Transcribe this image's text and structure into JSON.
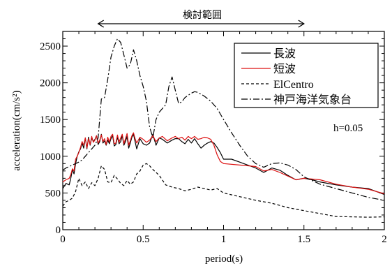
{
  "chart_data": {
    "type": "line",
    "title": "",
    "xlabel": "period(s)",
    "ylabel": "acceleration(cm/s²)",
    "xlim": [
      0,
      2
    ],
    "ylim": [
      0,
      2700
    ],
    "xticks": [
      0,
      0.5,
      1,
      1.5,
      2
    ],
    "yticks": [
      0,
      500,
      1000,
      1500,
      2000,
      2500
    ],
    "xtick_labels": [
      "0",
      "0.5",
      "1",
      "1.5",
      "2"
    ],
    "ytick_labels": [
      "0",
      "500",
      "1000",
      "1500",
      "2000",
      "2500"
    ],
    "grid": false,
    "legend_position": "top-right",
    "annotations": {
      "range_label": "検討範囲",
      "range": [
        0.22,
        1.5
      ],
      "damping": "h=0.05"
    },
    "series": [
      {
        "name": "長波",
        "color": "#000000",
        "style": "solid",
        "points": [
          [
            0,
            560
          ],
          [
            0.02,
            630
          ],
          [
            0.04,
            610
          ],
          [
            0.05,
            700
          ],
          [
            0.06,
            820
          ],
          [
            0.07,
            760
          ],
          [
            0.08,
            900
          ],
          [
            0.09,
            1000
          ],
          [
            0.1,
            1060
          ],
          [
            0.11,
            1100
          ],
          [
            0.12,
            1180
          ],
          [
            0.13,
            1110
          ],
          [
            0.14,
            1250
          ],
          [
            0.15,
            1100
          ],
          [
            0.16,
            1260
          ],
          [
            0.17,
            1150
          ],
          [
            0.18,
            1250
          ],
          [
            0.19,
            1200
          ],
          [
            0.2,
            1230
          ],
          [
            0.21,
            1280
          ],
          [
            0.22,
            1160
          ],
          [
            0.23,
            1200
          ],
          [
            0.24,
            1300
          ],
          [
            0.25,
            1180
          ],
          [
            0.26,
            1210
          ],
          [
            0.27,
            1150
          ],
          [
            0.28,
            1220
          ],
          [
            0.29,
            1170
          ],
          [
            0.3,
            1240
          ],
          [
            0.31,
            1280
          ],
          [
            0.32,
            1140
          ],
          [
            0.33,
            1160
          ],
          [
            0.34,
            1260
          ],
          [
            0.35,
            1170
          ],
          [
            0.36,
            1200
          ],
          [
            0.37,
            1280
          ],
          [
            0.38,
            1150
          ],
          [
            0.39,
            1200
          ],
          [
            0.4,
            1270
          ],
          [
            0.41,
            1110
          ],
          [
            0.42,
            1180
          ],
          [
            0.43,
            1260
          ],
          [
            0.44,
            1300
          ],
          [
            0.45,
            1200
          ],
          [
            0.46,
            1100
          ],
          [
            0.48,
            1240
          ],
          [
            0.5,
            1170
          ],
          [
            0.52,
            1150
          ],
          [
            0.54,
            1180
          ],
          [
            0.56,
            1300
          ],
          [
            0.58,
            1150
          ],
          [
            0.6,
            1250
          ],
          [
            0.62,
            1230
          ],
          [
            0.65,
            1180
          ],
          [
            0.68,
            1220
          ],
          [
            0.7,
            1240
          ],
          [
            0.72,
            1240
          ],
          [
            0.74,
            1200
          ],
          [
            0.76,
            1170
          ],
          [
            0.78,
            1230
          ],
          [
            0.8,
            1180
          ],
          [
            0.82,
            1240
          ],
          [
            0.84,
            1170
          ],
          [
            0.86,
            1110
          ],
          [
            0.88,
            1150
          ],
          [
            0.9,
            1180
          ],
          [
            0.92,
            1200
          ],
          [
            0.94,
            1180
          ],
          [
            0.96,
            1120
          ],
          [
            0.98,
            1050
          ],
          [
            1.0,
            960
          ],
          [
            1.05,
            960
          ],
          [
            1.1,
            920
          ],
          [
            1.15,
            880
          ],
          [
            1.2,
            840
          ],
          [
            1.25,
            780
          ],
          [
            1.3,
            840
          ],
          [
            1.35,
            810
          ],
          [
            1.4,
            740
          ],
          [
            1.45,
            680
          ],
          [
            1.5,
            700
          ],
          [
            1.55,
            680
          ],
          [
            1.6,
            650
          ],
          [
            1.7,
            610
          ],
          [
            1.8,
            580
          ],
          [
            1.9,
            560
          ],
          [
            2.0,
            480
          ]
        ]
      },
      {
        "name": "短波",
        "color": "#dd1111",
        "style": "solid",
        "points": [
          [
            0,
            650
          ],
          [
            0.02,
            680
          ],
          [
            0.04,
            700
          ],
          [
            0.05,
            750
          ],
          [
            0.06,
            830
          ],
          [
            0.07,
            800
          ],
          [
            0.08,
            960
          ],
          [
            0.09,
            1000
          ],
          [
            0.1,
            1050
          ],
          [
            0.11,
            1120
          ],
          [
            0.12,
            1200
          ],
          [
            0.13,
            1150
          ],
          [
            0.14,
            1250
          ],
          [
            0.15,
            1110
          ],
          [
            0.16,
            1240
          ],
          [
            0.17,
            1160
          ],
          [
            0.18,
            1270
          ],
          [
            0.19,
            1190
          ],
          [
            0.2,
            1220
          ],
          [
            0.21,
            1280
          ],
          [
            0.22,
            1180
          ],
          [
            0.23,
            1220
          ],
          [
            0.24,
            1290
          ],
          [
            0.25,
            1200
          ],
          [
            0.26,
            1240
          ],
          [
            0.27,
            1160
          ],
          [
            0.28,
            1260
          ],
          [
            0.29,
            1190
          ],
          [
            0.3,
            1270
          ],
          [
            0.31,
            1300
          ],
          [
            0.32,
            1170
          ],
          [
            0.33,
            1180
          ],
          [
            0.34,
            1290
          ],
          [
            0.35,
            1190
          ],
          [
            0.36,
            1250
          ],
          [
            0.37,
            1300
          ],
          [
            0.38,
            1170
          ],
          [
            0.39,
            1240
          ],
          [
            0.4,
            1310
          ],
          [
            0.41,
            1150
          ],
          [
            0.42,
            1210
          ],
          [
            0.43,
            1280
          ],
          [
            0.44,
            1320
          ],
          [
            0.45,
            1240
          ],
          [
            0.46,
            1180
          ],
          [
            0.48,
            1260
          ],
          [
            0.5,
            1230
          ],
          [
            0.52,
            1190
          ],
          [
            0.54,
            1220
          ],
          [
            0.56,
            1280
          ],
          [
            0.58,
            1200
          ],
          [
            0.6,
            1250
          ],
          [
            0.62,
            1270
          ],
          [
            0.65,
            1210
          ],
          [
            0.68,
            1250
          ],
          [
            0.7,
            1270
          ],
          [
            0.72,
            1240
          ],
          [
            0.74,
            1260
          ],
          [
            0.76,
            1220
          ],
          [
            0.78,
            1270
          ],
          [
            0.8,
            1240
          ],
          [
            0.82,
            1270
          ],
          [
            0.84,
            1230
          ],
          [
            0.86,
            1240
          ],
          [
            0.88,
            1260
          ],
          [
            0.9,
            1250
          ],
          [
            0.92,
            1230
          ],
          [
            0.94,
            1150
          ],
          [
            0.96,
            1020
          ],
          [
            0.98,
            930
          ],
          [
            1.0,
            900
          ],
          [
            1.1,
            880
          ],
          [
            1.2,
            860
          ],
          [
            1.25,
            800
          ],
          [
            1.3,
            820
          ],
          [
            1.35,
            780
          ],
          [
            1.4,
            730
          ],
          [
            1.45,
            680
          ],
          [
            1.5,
            700
          ],
          [
            1.6,
            680
          ],
          [
            1.7,
            620
          ],
          [
            1.8,
            580
          ],
          [
            1.9,
            550
          ],
          [
            2.0,
            490
          ]
        ]
      },
      {
        "name": "ElCentro",
        "color": "#000000",
        "style": "dashed",
        "points": [
          [
            0,
            320
          ],
          [
            0.02,
            380
          ],
          [
            0.04,
            400
          ],
          [
            0.06,
            430
          ],
          [
            0.08,
            520
          ],
          [
            0.1,
            700
          ],
          [
            0.12,
            600
          ],
          [
            0.14,
            650
          ],
          [
            0.16,
            560
          ],
          [
            0.18,
            640
          ],
          [
            0.2,
            600
          ],
          [
            0.22,
            700
          ],
          [
            0.24,
            870
          ],
          [
            0.26,
            820
          ],
          [
            0.28,
            650
          ],
          [
            0.3,
            640
          ],
          [
            0.32,
            740
          ],
          [
            0.34,
            690
          ],
          [
            0.36,
            630
          ],
          [
            0.38,
            600
          ],
          [
            0.4,
            670
          ],
          [
            0.42,
            620
          ],
          [
            0.44,
            650
          ],
          [
            0.46,
            760
          ],
          [
            0.48,
            800
          ],
          [
            0.5,
            880
          ],
          [
            0.52,
            900
          ],
          [
            0.54,
            870
          ],
          [
            0.56,
            820
          ],
          [
            0.6,
            740
          ],
          [
            0.64,
            610
          ],
          [
            0.68,
            580
          ],
          [
            0.72,
            560
          ],
          [
            0.76,
            530
          ],
          [
            0.8,
            550
          ],
          [
            0.84,
            580
          ],
          [
            0.88,
            560
          ],
          [
            0.92,
            540
          ],
          [
            0.96,
            560
          ],
          [
            1.0,
            500
          ],
          [
            1.1,
            450
          ],
          [
            1.2,
            400
          ],
          [
            1.3,
            360
          ],
          [
            1.4,
            300
          ],
          [
            1.5,
            260
          ],
          [
            1.6,
            220
          ],
          [
            1.7,
            180
          ],
          [
            1.8,
            175
          ],
          [
            1.9,
            170
          ],
          [
            2.0,
            175
          ]
        ]
      },
      {
        "name": "神戸海洋気象台",
        "color": "#000000",
        "style": "dashdot",
        "points": [
          [
            0,
            810
          ],
          [
            0.02,
            840
          ],
          [
            0.04,
            860
          ],
          [
            0.06,
            880
          ],
          [
            0.08,
            900
          ],
          [
            0.1,
            920
          ],
          [
            0.12,
            950
          ],
          [
            0.14,
            1000
          ],
          [
            0.16,
            1050
          ],
          [
            0.18,
            1100
          ],
          [
            0.2,
            1150
          ],
          [
            0.22,
            1250
          ],
          [
            0.24,
            1780
          ],
          [
            0.26,
            1800
          ],
          [
            0.28,
            2050
          ],
          [
            0.3,
            2350
          ],
          [
            0.32,
            2500
          ],
          [
            0.34,
            2600
          ],
          [
            0.36,
            2550
          ],
          [
            0.38,
            2380
          ],
          [
            0.4,
            2200
          ],
          [
            0.42,
            2250
          ],
          [
            0.44,
            2450
          ],
          [
            0.46,
            2300
          ],
          [
            0.48,
            2100
          ],
          [
            0.5,
            1950
          ],
          [
            0.52,
            1750
          ],
          [
            0.54,
            1400
          ],
          [
            0.56,
            1250
          ],
          [
            0.58,
            1500
          ],
          [
            0.6,
            1600
          ],
          [
            0.62,
            1650
          ],
          [
            0.64,
            1700
          ],
          [
            0.66,
            1950
          ],
          [
            0.68,
            2080
          ],
          [
            0.7,
            1900
          ],
          [
            0.72,
            1720
          ],
          [
            0.74,
            1740
          ],
          [
            0.76,
            1800
          ],
          [
            0.78,
            1830
          ],
          [
            0.8,
            1860
          ],
          [
            0.82,
            1880
          ],
          [
            0.84,
            1870
          ],
          [
            0.88,
            1820
          ],
          [
            0.92,
            1750
          ],
          [
            0.96,
            1650
          ],
          [
            1.0,
            1500
          ],
          [
            1.05,
            1320
          ],
          [
            1.1,
            1150
          ],
          [
            1.15,
            1000
          ],
          [
            1.2,
            900
          ],
          [
            1.25,
            850
          ],
          [
            1.3,
            900
          ],
          [
            1.35,
            910
          ],
          [
            1.4,
            880
          ],
          [
            1.45,
            820
          ],
          [
            1.5,
            720
          ],
          [
            1.6,
            620
          ],
          [
            1.7,
            560
          ],
          [
            1.8,
            500
          ],
          [
            1.9,
            440
          ],
          [
            2.0,
            400
          ]
        ]
      }
    ]
  }
}
